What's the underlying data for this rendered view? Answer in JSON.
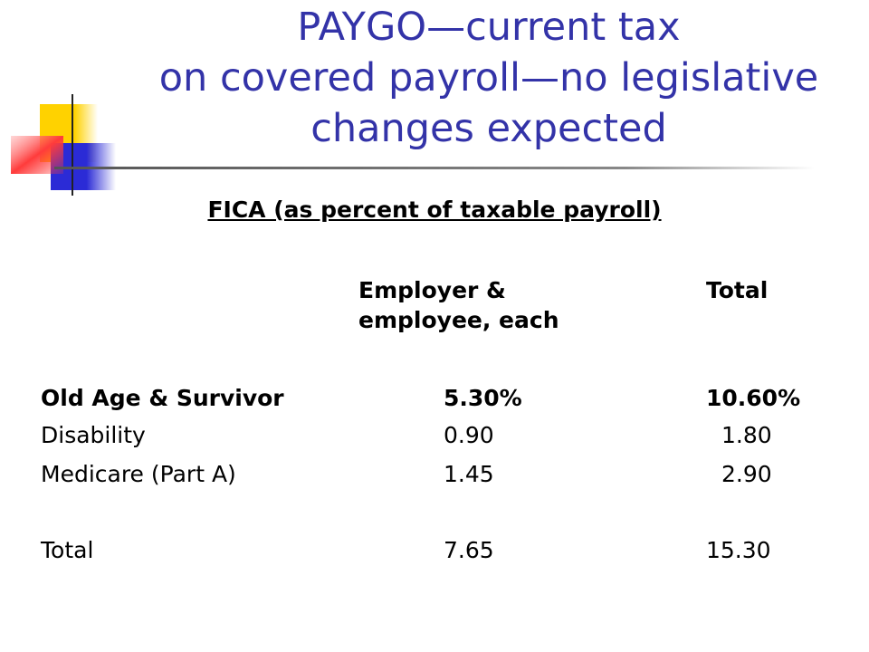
{
  "slide": {
    "title_line1": "PAYGO—current tax",
    "title_line2": "on covered payroll—no legislative",
    "title_line3": "changes expected",
    "subtitle": "FICA (as percent of taxable payroll)"
  },
  "table": {
    "headers": {
      "each_line1": "Employer &",
      "each_line2": "employee, each",
      "total": "Total"
    },
    "rows": [
      {
        "label": "Old Age & Survivor",
        "each": "5.30%",
        "total": "10.60%"
      },
      {
        "label": "Disability",
        "each": "0.90",
        "total": "1.80"
      },
      {
        "label": "Medicare (Part A)",
        "each": "1.45",
        "total": "2.90"
      },
      {
        "label": "Total",
        "each": "7.65",
        "total": "15.30"
      }
    ]
  },
  "colors": {
    "title": "#3333a8",
    "text": "#000000",
    "deco_yellow": "#ffd200",
    "deco_blue": "#2b2bd6",
    "deco_red": "#ff3b3b"
  },
  "icons": {
    "decoration": "colored-squares-icon"
  }
}
